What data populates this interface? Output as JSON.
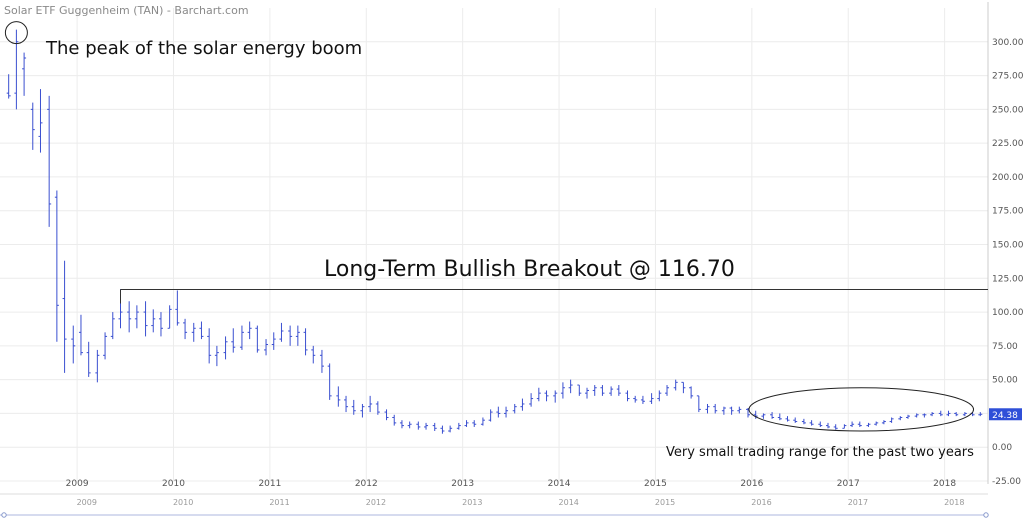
{
  "chart_data": {
    "type": "line",
    "title": "Solar ETF Guggenheim (TAN) - Barchart.com",
    "xlabel": "",
    "ylabel": "",
    "ylim": [
      -25,
      325
    ],
    "xlim": [
      2008.2,
      2018.45
    ],
    "y_ticks": [
      -25,
      0,
      25,
      50,
      75,
      100,
      125,
      150,
      175,
      200,
      225,
      250,
      275,
      300
    ],
    "y_tick_labels": [
      "-25.00",
      "0.00",
      "25.00",
      "50.00",
      "75.00",
      "100.00",
      "125.00",
      "150.00",
      "175.00",
      "200.00",
      "225.00",
      "250.00",
      "275.00",
      "300.00"
    ],
    "x_ticks": [
      "2009",
      "2010",
      "2011",
      "2012",
      "2013",
      "2014",
      "2015",
      "2016",
      "2017",
      "2018"
    ],
    "navigator_ticks": [
      "2009",
      "2010",
      "2011",
      "2012",
      "2013",
      "2014",
      "2015",
      "2016",
      "2017",
      "2018"
    ],
    "bar_color": "#3a4fd0",
    "last_price_label": "24.38",
    "grid": true,
    "series": [
      {
        "bars": [
          {
            "t": 2008.29,
            "h": 276,
            "l": 258,
            "o": 262,
            "c": 260
          },
          {
            "t": 2008.37,
            "h": 309,
            "l": 250,
            "o": 262,
            "c": 300
          },
          {
            "t": 2008.45,
            "h": 292,
            "l": 260,
            "o": 280,
            "c": 288
          },
          {
            "t": 2008.54,
            "h": 255,
            "l": 220,
            "o": 250,
            "c": 235
          },
          {
            "t": 2008.62,
            "h": 265,
            "l": 218,
            "o": 230,
            "c": 240
          },
          {
            "t": 2008.71,
            "h": 260,
            "l": 163,
            "o": 250,
            "c": 180
          },
          {
            "t": 2008.79,
            "h": 190,
            "l": 78,
            "o": 185,
            "c": 105
          },
          {
            "t": 2008.87,
            "h": 138,
            "l": 55,
            "o": 110,
            "c": 80
          },
          {
            "t": 2008.96,
            "h": 90,
            "l": 62,
            "o": 80,
            "c": 75
          },
          {
            "t": 2009.04,
            "h": 98,
            "l": 68,
            "o": 85,
            "c": 70
          },
          {
            "t": 2009.12,
            "h": 78,
            "l": 52,
            "o": 70,
            "c": 55
          },
          {
            "t": 2009.21,
            "h": 72,
            "l": 48,
            "o": 55,
            "c": 68
          },
          {
            "t": 2009.29,
            "h": 85,
            "l": 65,
            "o": 68,
            "c": 82
          },
          {
            "t": 2009.37,
            "h": 100,
            "l": 80,
            "o": 82,
            "c": 95
          },
          {
            "t": 2009.45,
            "h": 117,
            "l": 88,
            "o": 95,
            "c": 100
          },
          {
            "t": 2009.54,
            "h": 108,
            "l": 85,
            "o": 100,
            "c": 95
          },
          {
            "t": 2009.62,
            "h": 105,
            "l": 88,
            "o": 95,
            "c": 100
          },
          {
            "t": 2009.71,
            "h": 108,
            "l": 82,
            "o": 100,
            "c": 90
          },
          {
            "t": 2009.79,
            "h": 102,
            "l": 85,
            "o": 90,
            "c": 95
          },
          {
            "t": 2009.87,
            "h": 100,
            "l": 82,
            "o": 95,
            "c": 88
          },
          {
            "t": 2009.96,
            "h": 105,
            "l": 88,
            "o": 88,
            "c": 102
          },
          {
            "t": 2010.04,
            "h": 116,
            "l": 90,
            "o": 102,
            "c": 92
          },
          {
            "t": 2010.12,
            "h": 95,
            "l": 80,
            "o": 92,
            "c": 85
          },
          {
            "t": 2010.21,
            "h": 92,
            "l": 78,
            "o": 85,
            "c": 88
          },
          {
            "t": 2010.29,
            "h": 93,
            "l": 80,
            "o": 88,
            "c": 82
          },
          {
            "t": 2010.37,
            "h": 88,
            "l": 62,
            "o": 82,
            "c": 68
          },
          {
            "t": 2010.45,
            "h": 75,
            "l": 60,
            "o": 68,
            "c": 70
          },
          {
            "t": 2010.54,
            "h": 82,
            "l": 65,
            "o": 70,
            "c": 78
          },
          {
            "t": 2010.62,
            "h": 88,
            "l": 70,
            "o": 78,
            "c": 74
          },
          {
            "t": 2010.71,
            "h": 90,
            "l": 72,
            "o": 74,
            "c": 85
          },
          {
            "t": 2010.79,
            "h": 93,
            "l": 80,
            "o": 85,
            "c": 88
          },
          {
            "t": 2010.87,
            "h": 90,
            "l": 70,
            "o": 88,
            "c": 72
          },
          {
            "t": 2010.96,
            "h": 80,
            "l": 68,
            "o": 72,
            "c": 76
          },
          {
            "t": 2011.04,
            "h": 85,
            "l": 72,
            "o": 76,
            "c": 80
          },
          {
            "t": 2011.12,
            "h": 92,
            "l": 78,
            "o": 80,
            "c": 86
          },
          {
            "t": 2011.21,
            "h": 90,
            "l": 75,
            "o": 86,
            "c": 82
          },
          {
            "t": 2011.29,
            "h": 90,
            "l": 75,
            "o": 82,
            "c": 85
          },
          {
            "t": 2011.37,
            "h": 88,
            "l": 68,
            "o": 85,
            "c": 72
          },
          {
            "t": 2011.45,
            "h": 75,
            "l": 62,
            "o": 72,
            "c": 68
          },
          {
            "t": 2011.54,
            "h": 72,
            "l": 55,
            "o": 68,
            "c": 60
          },
          {
            "t": 2011.62,
            "h": 62,
            "l": 35,
            "o": 60,
            "c": 38
          },
          {
            "t": 2011.71,
            "h": 45,
            "l": 30,
            "o": 38,
            "c": 35
          },
          {
            "t": 2011.79,
            "h": 38,
            "l": 26,
            "o": 35,
            "c": 30
          },
          {
            "t": 2011.87,
            "h": 35,
            "l": 24,
            "o": 30,
            "c": 27
          },
          {
            "t": 2011.96,
            "h": 32,
            "l": 22,
            "o": 27,
            "c": 30
          },
          {
            "t": 2012.04,
            "h": 38,
            "l": 26,
            "o": 30,
            "c": 32
          },
          {
            "t": 2012.12,
            "h": 34,
            "l": 24,
            "o": 32,
            "c": 26
          },
          {
            "t": 2012.21,
            "h": 28,
            "l": 20,
            "o": 26,
            "c": 22
          },
          {
            "t": 2012.29,
            "h": 24,
            "l": 16,
            "o": 22,
            "c": 18
          },
          {
            "t": 2012.37,
            "h": 20,
            "l": 14,
            "o": 18,
            "c": 16
          },
          {
            "t": 2012.45,
            "h": 19,
            "l": 14,
            "o": 16,
            "c": 17
          },
          {
            "t": 2012.54,
            "h": 19,
            "l": 13,
            "o": 17,
            "c": 15
          },
          {
            "t": 2012.62,
            "h": 18,
            "l": 13,
            "o": 15,
            "c": 16
          },
          {
            "t": 2012.71,
            "h": 18,
            "l": 12,
            "o": 16,
            "c": 14
          },
          {
            "t": 2012.79,
            "h": 16,
            "l": 10,
            "o": 14,
            "c": 12
          },
          {
            "t": 2012.87,
            "h": 16,
            "l": 11,
            "o": 12,
            "c": 14
          },
          {
            "t": 2012.96,
            "h": 18,
            "l": 13,
            "o": 14,
            "c": 16
          },
          {
            "t": 2013.04,
            "h": 20,
            "l": 15,
            "o": 16,
            "c": 18
          },
          {
            "t": 2013.12,
            "h": 20,
            "l": 15,
            "o": 18,
            "c": 17
          },
          {
            "t": 2013.21,
            "h": 22,
            "l": 16,
            "o": 17,
            "c": 20
          },
          {
            "t": 2013.29,
            "h": 28,
            "l": 19,
            "o": 20,
            "c": 26
          },
          {
            "t": 2013.37,
            "h": 30,
            "l": 22,
            "o": 26,
            "c": 25
          },
          {
            "t": 2013.45,
            "h": 30,
            "l": 22,
            "o": 25,
            "c": 27
          },
          {
            "t": 2013.54,
            "h": 32,
            "l": 25,
            "o": 27,
            "c": 30
          },
          {
            "t": 2013.62,
            "h": 36,
            "l": 27,
            "o": 30,
            "c": 32
          },
          {
            "t": 2013.71,
            "h": 40,
            "l": 30,
            "o": 32,
            "c": 36
          },
          {
            "t": 2013.79,
            "h": 44,
            "l": 34,
            "o": 36,
            "c": 40
          },
          {
            "t": 2013.87,
            "h": 42,
            "l": 34,
            "o": 40,
            "c": 38
          },
          {
            "t": 2013.96,
            "h": 42,
            "l": 33,
            "o": 38,
            "c": 40
          },
          {
            "t": 2014.04,
            "h": 48,
            "l": 36,
            "o": 40,
            "c": 44
          },
          {
            "t": 2014.12,
            "h": 50,
            "l": 40,
            "o": 44,
            "c": 46
          },
          {
            "t": 2014.21,
            "h": 46,
            "l": 38,
            "o": 46,
            "c": 40
          },
          {
            "t": 2014.29,
            "h": 44,
            "l": 36,
            "o": 40,
            "c": 42
          },
          {
            "t": 2014.37,
            "h": 46,
            "l": 38,
            "o": 42,
            "c": 44
          },
          {
            "t": 2014.45,
            "h": 46,
            "l": 38,
            "o": 44,
            "c": 40
          },
          {
            "t": 2014.54,
            "h": 45,
            "l": 38,
            "o": 40,
            "c": 43
          },
          {
            "t": 2014.62,
            "h": 46,
            "l": 38,
            "o": 43,
            "c": 40
          },
          {
            "t": 2014.71,
            "h": 42,
            "l": 34,
            "o": 40,
            "c": 36
          },
          {
            "t": 2014.79,
            "h": 38,
            "l": 33,
            "o": 36,
            "c": 35
          },
          {
            "t": 2014.87,
            "h": 38,
            "l": 32,
            "o": 35,
            "c": 34
          },
          {
            "t": 2014.96,
            "h": 40,
            "l": 32,
            "o": 34,
            "c": 36
          },
          {
            "t": 2015.04,
            "h": 42,
            "l": 34,
            "o": 36,
            "c": 40
          },
          {
            "t": 2015.12,
            "h": 46,
            "l": 38,
            "o": 40,
            "c": 44
          },
          {
            "t": 2015.21,
            "h": 50,
            "l": 42,
            "o": 44,
            "c": 48
          },
          {
            "t": 2015.29,
            "h": 48,
            "l": 40,
            "o": 48,
            "c": 44
          },
          {
            "t": 2015.37,
            "h": 45,
            "l": 36,
            "o": 44,
            "c": 38
          },
          {
            "t": 2015.45,
            "h": 38,
            "l": 26,
            "o": 38,
            "c": 28
          },
          {
            "t": 2015.54,
            "h": 32,
            "l": 25,
            "o": 28,
            "c": 30
          },
          {
            "t": 2015.62,
            "h": 32,
            "l": 25,
            "o": 30,
            "c": 27
          },
          {
            "t": 2015.71,
            "h": 30,
            "l": 24,
            "o": 27,
            "c": 29
          },
          {
            "t": 2015.79,
            "h": 30,
            "l": 24,
            "o": 29,
            "c": 27
          },
          {
            "t": 2015.87,
            "h": 30,
            "l": 25,
            "o": 27,
            "c": 28
          },
          {
            "t": 2015.96,
            "h": 29,
            "l": 22,
            "o": 28,
            "c": 24
          },
          {
            "t": 2016.04,
            "h": 27,
            "l": 21,
            "o": 24,
            "c": 23
          },
          {
            "t": 2016.12,
            "h": 25,
            "l": 21,
            "o": 23,
            "c": 24
          },
          {
            "t": 2016.21,
            "h": 26,
            "l": 21,
            "o": 24,
            "c": 22
          },
          {
            "t": 2016.29,
            "h": 25,
            "l": 20,
            "o": 22,
            "c": 21
          },
          {
            "t": 2016.37,
            "h": 23,
            "l": 19,
            "o": 21,
            "c": 20
          },
          {
            "t": 2016.45,
            "h": 22,
            "l": 18,
            "o": 20,
            "c": 19
          },
          {
            "t": 2016.54,
            "h": 21,
            "l": 17,
            "o": 19,
            "c": 18
          },
          {
            "t": 2016.62,
            "h": 20,
            "l": 16,
            "o": 18,
            "c": 17
          },
          {
            "t": 2016.71,
            "h": 19,
            "l": 15,
            "o": 17,
            "c": 16
          },
          {
            "t": 2016.79,
            "h": 18,
            "l": 14,
            "o": 16,
            "c": 15
          },
          {
            "t": 2016.87,
            "h": 17,
            "l": 13,
            "o": 15,
            "c": 14
          },
          {
            "t": 2016.96,
            "h": 17,
            "l": 14,
            "o": 14,
            "c": 16
          },
          {
            "t": 2017.04,
            "h": 19,
            "l": 15,
            "o": 16,
            "c": 17
          },
          {
            "t": 2017.12,
            "h": 19,
            "l": 15,
            "o": 17,
            "c": 16
          },
          {
            "t": 2017.21,
            "h": 18,
            "l": 15,
            "o": 16,
            "c": 17
          },
          {
            "t": 2017.29,
            "h": 19,
            "l": 16,
            "o": 17,
            "c": 18
          },
          {
            "t": 2017.37,
            "h": 20,
            "l": 17,
            "o": 18,
            "c": 19
          },
          {
            "t": 2017.45,
            "h": 22,
            "l": 18,
            "o": 19,
            "c": 21
          },
          {
            "t": 2017.54,
            "h": 23,
            "l": 20,
            "o": 21,
            "c": 22
          },
          {
            "t": 2017.62,
            "h": 24,
            "l": 21,
            "o": 22,
            "c": 23
          },
          {
            "t": 2017.71,
            "h": 25,
            "l": 22,
            "o": 23,
            "c": 24
          },
          {
            "t": 2017.79,
            "h": 25,
            "l": 22,
            "o": 24,
            "c": 24
          },
          {
            "t": 2017.87,
            "h": 26,
            "l": 23,
            "o": 24,
            "c": 25
          },
          {
            "t": 2017.96,
            "h": 27,
            "l": 23,
            "o": 25,
            "c": 24
          },
          {
            "t": 2018.04,
            "h": 27,
            "l": 23,
            "o": 24,
            "c": 25
          },
          {
            "t": 2018.12,
            "h": 26,
            "l": 23,
            "o": 25,
            "c": 24
          },
          {
            "t": 2018.21,
            "h": 26,
            "l": 23,
            "o": 24,
            "c": 25
          },
          {
            "t": 2018.29,
            "h": 26,
            "l": 23,
            "o": 25,
            "c": 24
          },
          {
            "t": 2018.37,
            "h": 26,
            "l": 23,
            "o": 24,
            "c": 24.38
          }
        ]
      }
    ],
    "annotations": {
      "peak_text": "The peak of the solar energy boom",
      "breakout_text": "Long-Term Bullish Breakout @ 116.70",
      "breakout_level": 116.7,
      "breakout_start": 2009.45,
      "range_text": "Very small trading range for the past two years",
      "peak_at": [
        2008.37,
        309
      ],
      "range_box": {
        "x0": 2015.97,
        "x1": 2018.3,
        "y0": 12,
        "y1": 44
      }
    }
  }
}
